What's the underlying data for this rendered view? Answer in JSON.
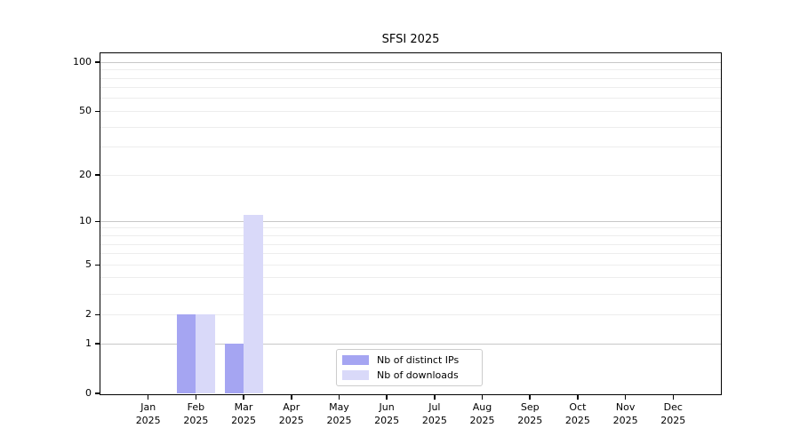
{
  "chart_data": {
    "type": "bar",
    "title": "SFSI 2025",
    "categories": [
      "Jan",
      "Feb",
      "Mar",
      "Apr",
      "May",
      "Jun",
      "Jul",
      "Aug",
      "Sep",
      "Oct",
      "Nov",
      "Dec"
    ],
    "year": "2025",
    "series": [
      {
        "name": "Nb of distinct IPs",
        "color": "#a5a5f2",
        "values": [
          0,
          2,
          1,
          0,
          0,
          0,
          0,
          0,
          0,
          0,
          0,
          0
        ]
      },
      {
        "name": "Nb of downloads",
        "color": "#d9d9f9",
        "values": [
          0,
          2,
          11,
          0,
          0,
          0,
          0,
          0,
          0,
          0,
          0,
          0
        ]
      }
    ],
    "xlabel": "",
    "ylabel": "",
    "yscale": "log1p",
    "ylim": [
      0,
      115
    ],
    "yticks": [
      0,
      1,
      2,
      5,
      10,
      20,
      50,
      100
    ],
    "grid_major_ticks": [
      1,
      10,
      100
    ],
    "grid_minor_ticks": [
      2,
      3,
      4,
      5,
      6,
      7,
      8,
      9,
      20,
      30,
      40,
      50,
      60,
      70,
      80,
      90
    ],
    "grid": "horizontal",
    "legend_position": "lower-center-inside",
    "colors": {
      "major_grid": "#c8c8c8",
      "minor_grid": "#ededed",
      "axis": "#000000",
      "legend_border": "#cccccc",
      "background": "#ffffff",
      "text": "#000000"
    }
  }
}
